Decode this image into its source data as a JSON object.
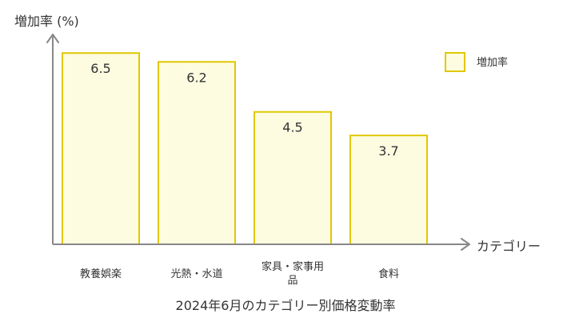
{
  "chart_data": {
    "type": "bar",
    "title": "2024年6月のカテゴリー別価格変動率",
    "xlabel": "カテゴリー",
    "ylabel": "増加率 (%)",
    "categories": [
      "教養娯楽",
      "光熱・水道",
      "家具・家事用品",
      "食料"
    ],
    "category_lines": [
      [
        "教養娯楽"
      ],
      [
        "光熱・水道"
      ],
      [
        "家具・家事用",
        "品"
      ],
      [
        "食料"
      ]
    ],
    "series": [
      {
        "name": "増加率",
        "values": [
          6.5,
          6.2,
          4.5,
          3.7
        ]
      }
    ],
    "ylim": [
      0,
      7.5
    ],
    "grid": false,
    "legend": "top-right",
    "colors": {
      "bar_fill": "#fdfbe0",
      "bar_stroke": "#e0c800",
      "axis": "#888888",
      "text": "#333333"
    }
  }
}
